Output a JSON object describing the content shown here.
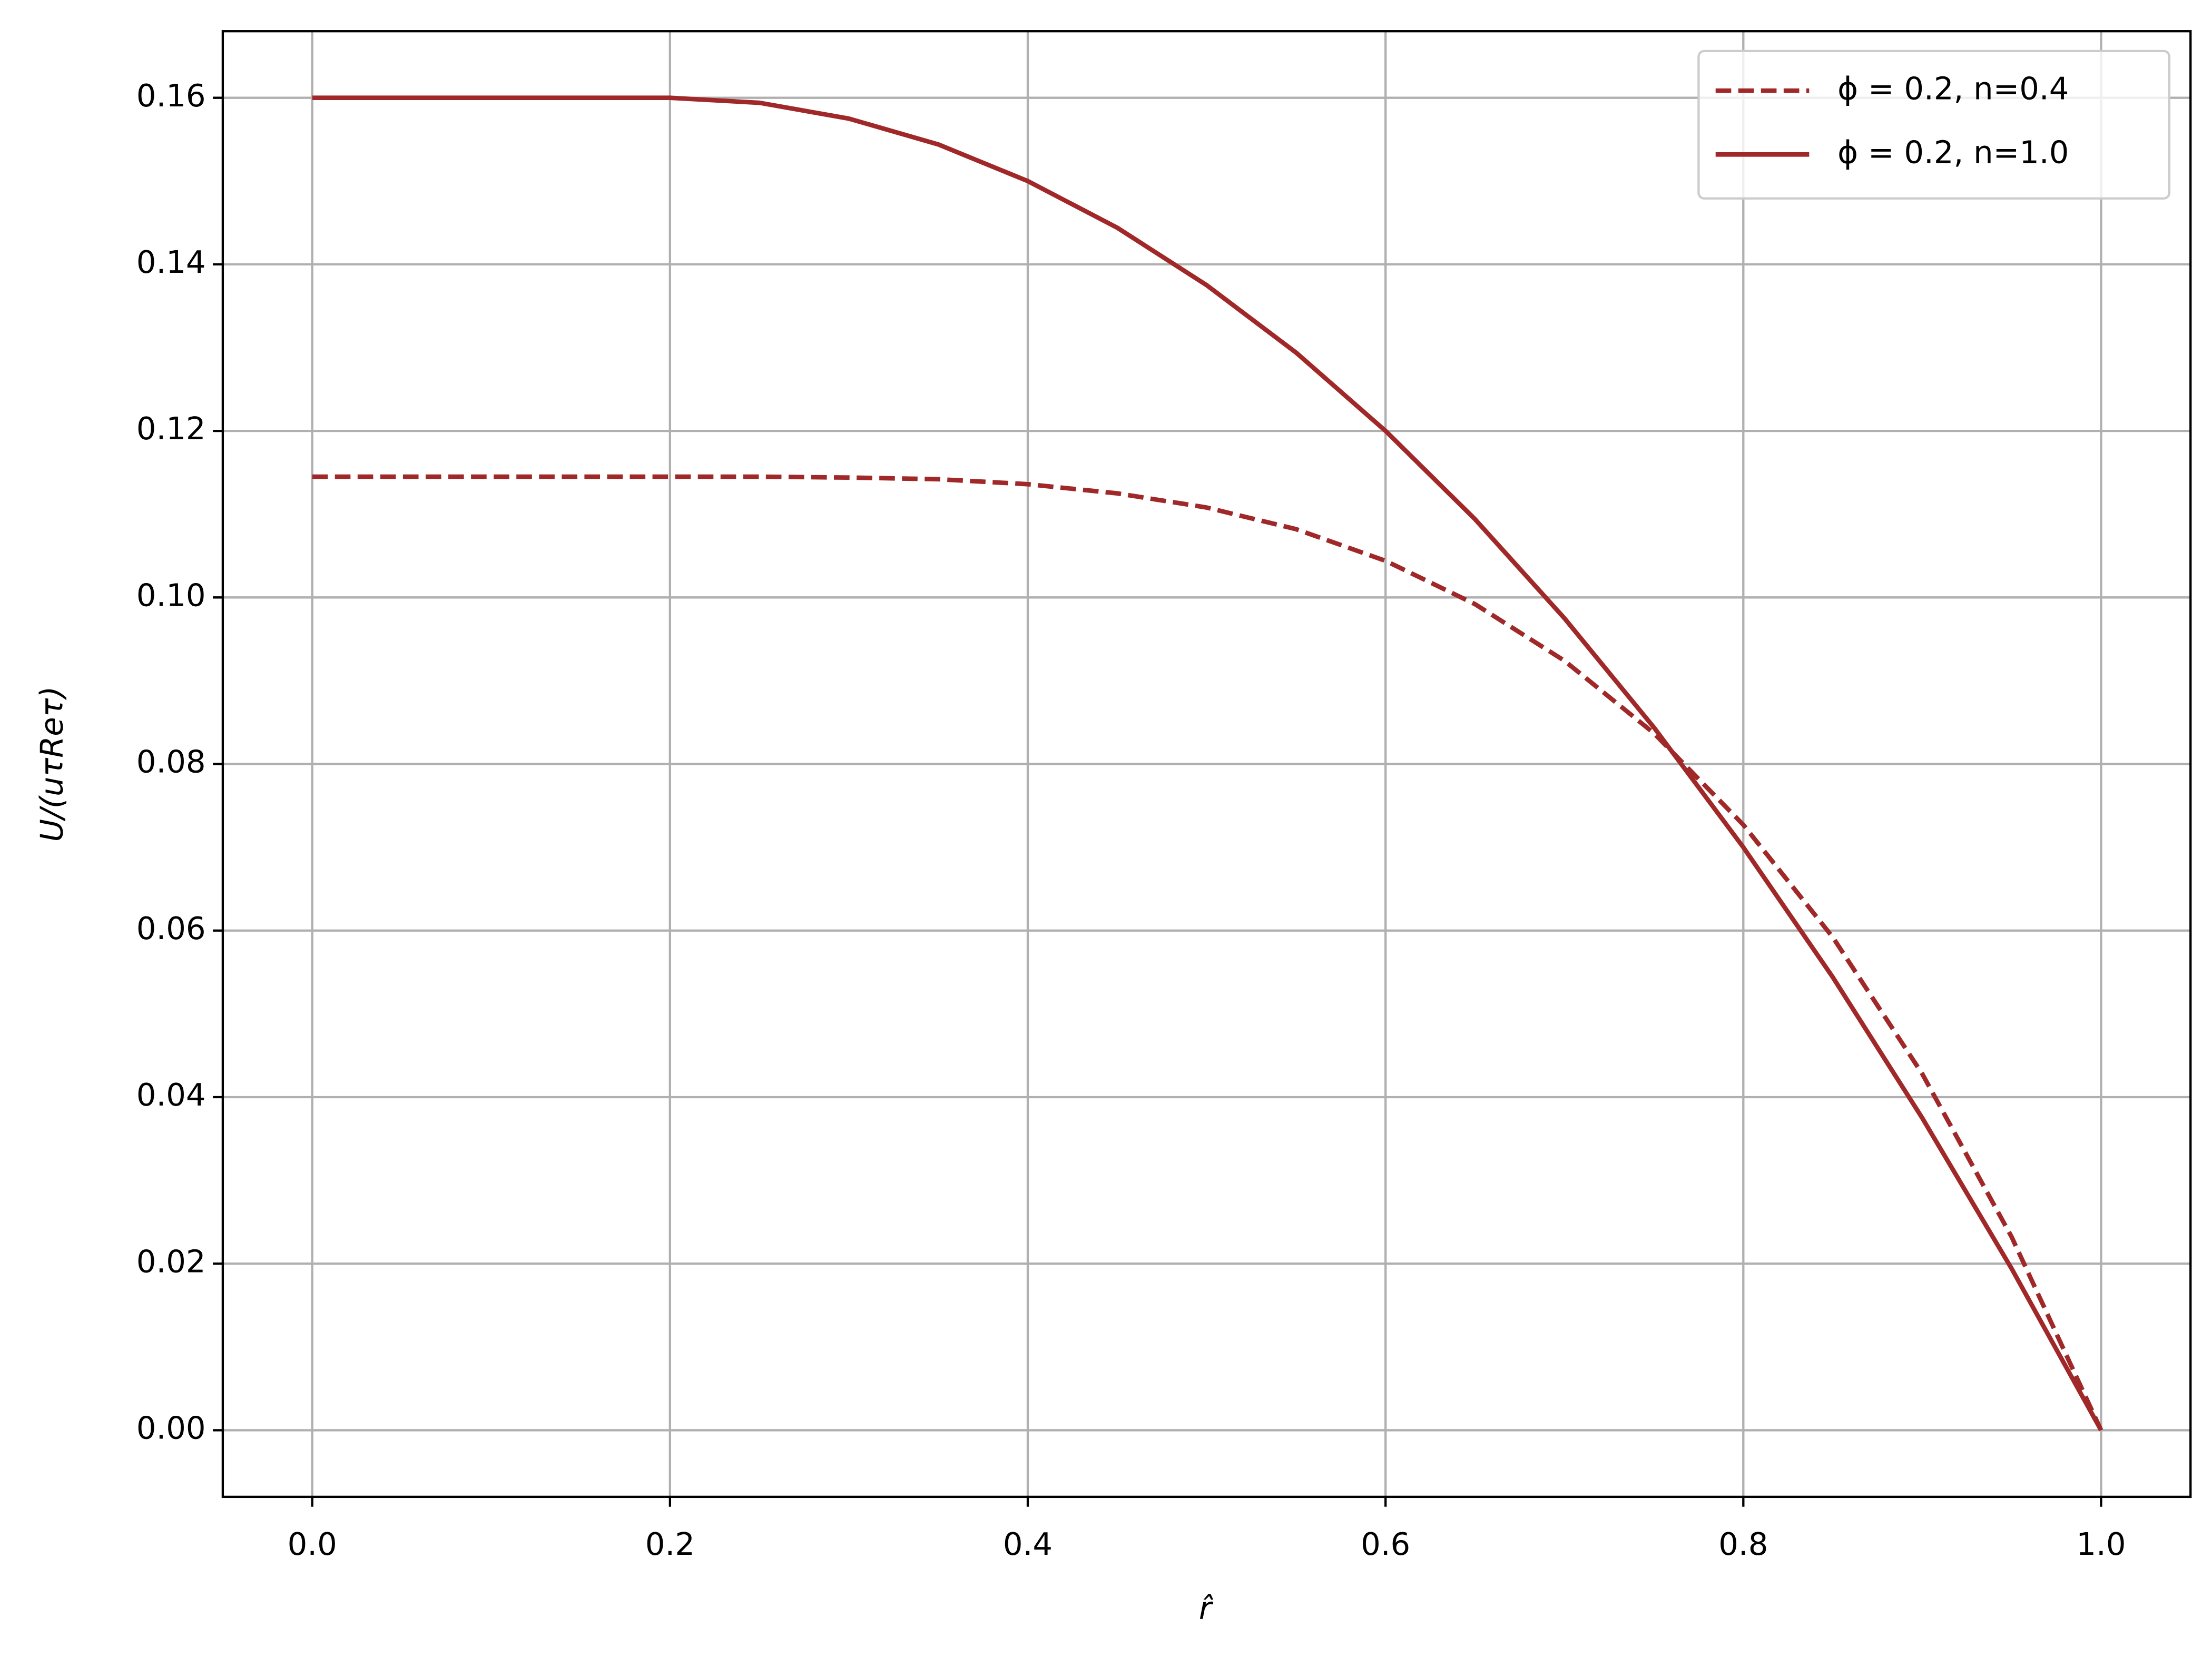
{
  "chart_data": {
    "type": "line",
    "x_label": "r̂",
    "y_label": "U/(uτReτ)",
    "x": [
      0,
      0.05,
      0.1,
      0.15,
      0.2,
      0.25,
      0.3,
      0.35,
      0.4,
      0.45,
      0.5,
      0.55,
      0.6,
      0.65,
      0.7,
      0.75,
      0.8,
      0.85,
      0.9,
      0.95,
      1.0
    ],
    "series": [
      {
        "name": "ϕ = 0.2, n=0.4",
        "color": "#a02828",
        "dash": true,
        "values": [
          0.1145,
          0.1145,
          0.1145,
          0.1145,
          0.1145,
          0.1145,
          0.1144,
          0.1142,
          0.1136,
          0.1125,
          0.1108,
          0.1082,
          0.1044,
          0.0992,
          0.0924,
          0.0837,
          0.0727,
          0.0592,
          0.0428,
          0.0232,
          0
        ]
      },
      {
        "name": "ϕ = 0.2, n=1.0",
        "color": "#a02828",
        "dash": false,
        "values": [
          0.16,
          0.16,
          0.16,
          0.16,
          0.16,
          0.1594,
          0.1575,
          0.1544,
          0.15,
          0.1444,
          0.1375,
          0.1294,
          0.12,
          0.1094,
          0.0975,
          0.0844,
          0.07,
          0.0544,
          0.0375,
          0.0194,
          0
        ]
      }
    ],
    "xlim": [
      -0.05,
      1.05
    ],
    "ylim": [
      -0.008,
      0.168
    ],
    "xticks": [
      {
        "value": 0,
        "label": "0.0"
      },
      0.2,
      0.4,
      0.6,
      0.8,
      {
        "value": 1,
        "label": "1.0"
      }
    ],
    "yticks": [
      {
        "value": 0,
        "label": "0.00"
      },
      {
        "value": 0.02,
        "label": "0.02"
      },
      {
        "value": 0.04,
        "label": "0.04"
      },
      {
        "value": 0.06,
        "label": "0.06"
      },
      {
        "value": 0.08,
        "label": "0.08"
      },
      {
        "value": 0.1,
        "label": "0.10"
      },
      {
        "value": 0.12,
        "label": "0.12"
      },
      {
        "value": 0.14,
        "label": "0.14"
      },
      {
        "value": 0.16,
        "label": "0.16"
      }
    ],
    "grid": true,
    "legend": "upper-right"
  }
}
